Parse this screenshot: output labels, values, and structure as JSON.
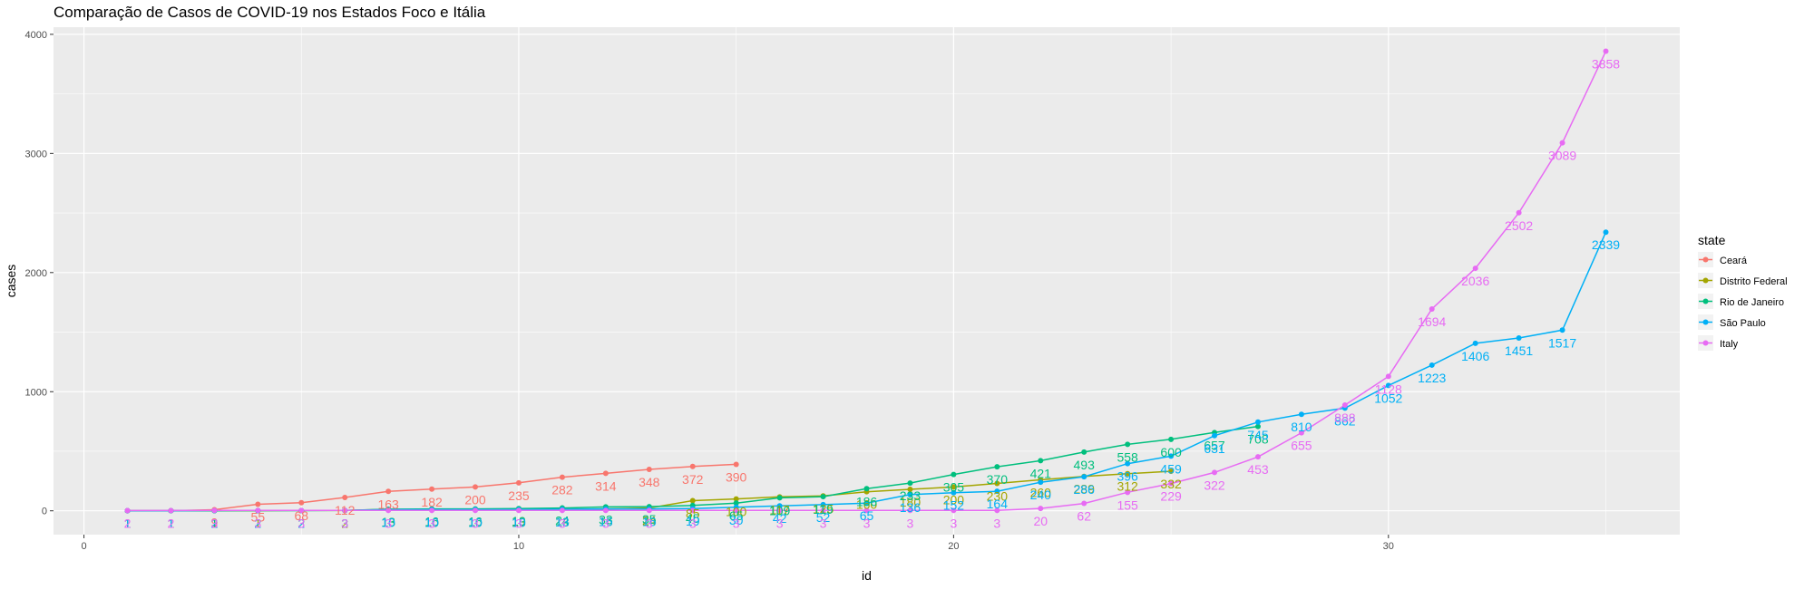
{
  "chart_data": {
    "type": "line",
    "title": "Comparação de Casos de COVID-19 nos Estados Foco e Itália",
    "xlabel": "id",
    "ylabel": "cases",
    "xlim": [
      -0.7,
      36.7
    ],
    "ylim": [
      -200,
      4060
    ],
    "x_ticks": [
      0,
      10,
      20,
      30
    ],
    "y_ticks": [
      0,
      1000,
      2000,
      3000,
      4000
    ],
    "grid": true,
    "legend_title": "state",
    "legend_position": "right",
    "series": [
      {
        "name": "Ceará",
        "color": "#F8766D",
        "x": [
          1,
          2,
          3,
          4,
          5,
          6,
          7,
          8,
          9,
          10,
          11,
          12,
          13,
          14,
          15
        ],
        "y": [
          1,
          1,
          9,
          55,
          68,
          112,
          163,
          182,
          200,
          235,
          282,
          314,
          348,
          372,
          390
        ]
      },
      {
        "name": "Distrito Federal",
        "color": "#A3A500",
        "x": [
          1,
          2,
          3,
          4,
          5,
          6,
          7,
          8,
          9,
          10,
          11,
          12,
          13,
          14,
          15,
          16,
          17,
          18,
          19,
          20,
          21,
          22,
          23,
          24,
          25
        ],
        "y": [
          1,
          1,
          1,
          1,
          2,
          2,
          13,
          10,
          10,
          13,
          13,
          16,
          24,
          85,
          100,
          117,
          125,
          160,
          180,
          200,
          230,
          260,
          289,
          312,
          332
        ]
      },
      {
        "name": "Rio de Janeiro",
        "color": "#00BF7D",
        "x": [
          1,
          2,
          3,
          4,
          5,
          6,
          7,
          8,
          9,
          10,
          11,
          12,
          13,
          14,
          15,
          16,
          17,
          18,
          19,
          20,
          21,
          22,
          23,
          24,
          25,
          26,
          27
        ],
        "y": [
          1,
          1,
          1,
          2,
          2,
          3,
          13,
          16,
          16,
          19,
          24,
          33,
          35,
          45,
          65,
          109,
          119,
          186,
          233,
          305,
          370,
          421,
          493,
          558,
          600,
          657,
          708
        ]
      },
      {
        "name": "São Paulo",
        "color": "#00B0F6",
        "x": [
          1,
          2,
          3,
          4,
          5,
          6,
          7,
          8,
          9,
          10,
          11,
          12,
          13,
          14,
          15,
          16,
          17,
          18,
          19,
          20,
          21,
          22,
          23,
          24,
          25,
          26,
          27,
          28,
          29,
          30,
          31,
          32,
          33,
          34,
          35
        ],
        "y": [
          1,
          1,
          2,
          2,
          2,
          3,
          10,
          10,
          10,
          10,
          13,
          16,
          16,
          19,
          30,
          42,
          52,
          65,
          136,
          152,
          164,
          240,
          286,
          396,
          459,
          631,
          745,
          810,
          862,
          1052,
          1223,
          1406,
          1451,
          1517,
          2339
        ]
      },
      {
        "name": "Italy",
        "color": "#E76BF3",
        "x": [
          1,
          2,
          3,
          4,
          5,
          6,
          7,
          8,
          9,
          10,
          11,
          12,
          13,
          14,
          15,
          16,
          17,
          18,
          19,
          20,
          21,
          22,
          23,
          24,
          25,
          26,
          27,
          28,
          29,
          30,
          31,
          32,
          33,
          34,
          35
        ],
        "y": [
          2,
          2,
          3,
          3,
          3,
          3,
          3,
          3,
          3,
          3,
          3,
          3,
          3,
          3,
          3,
          3,
          3,
          3,
          3,
          3,
          3,
          20,
          62,
          155,
          229,
          322,
          453,
          655,
          888,
          1128,
          1694,
          2036,
          2502,
          3089,
          3858
        ]
      }
    ]
  }
}
